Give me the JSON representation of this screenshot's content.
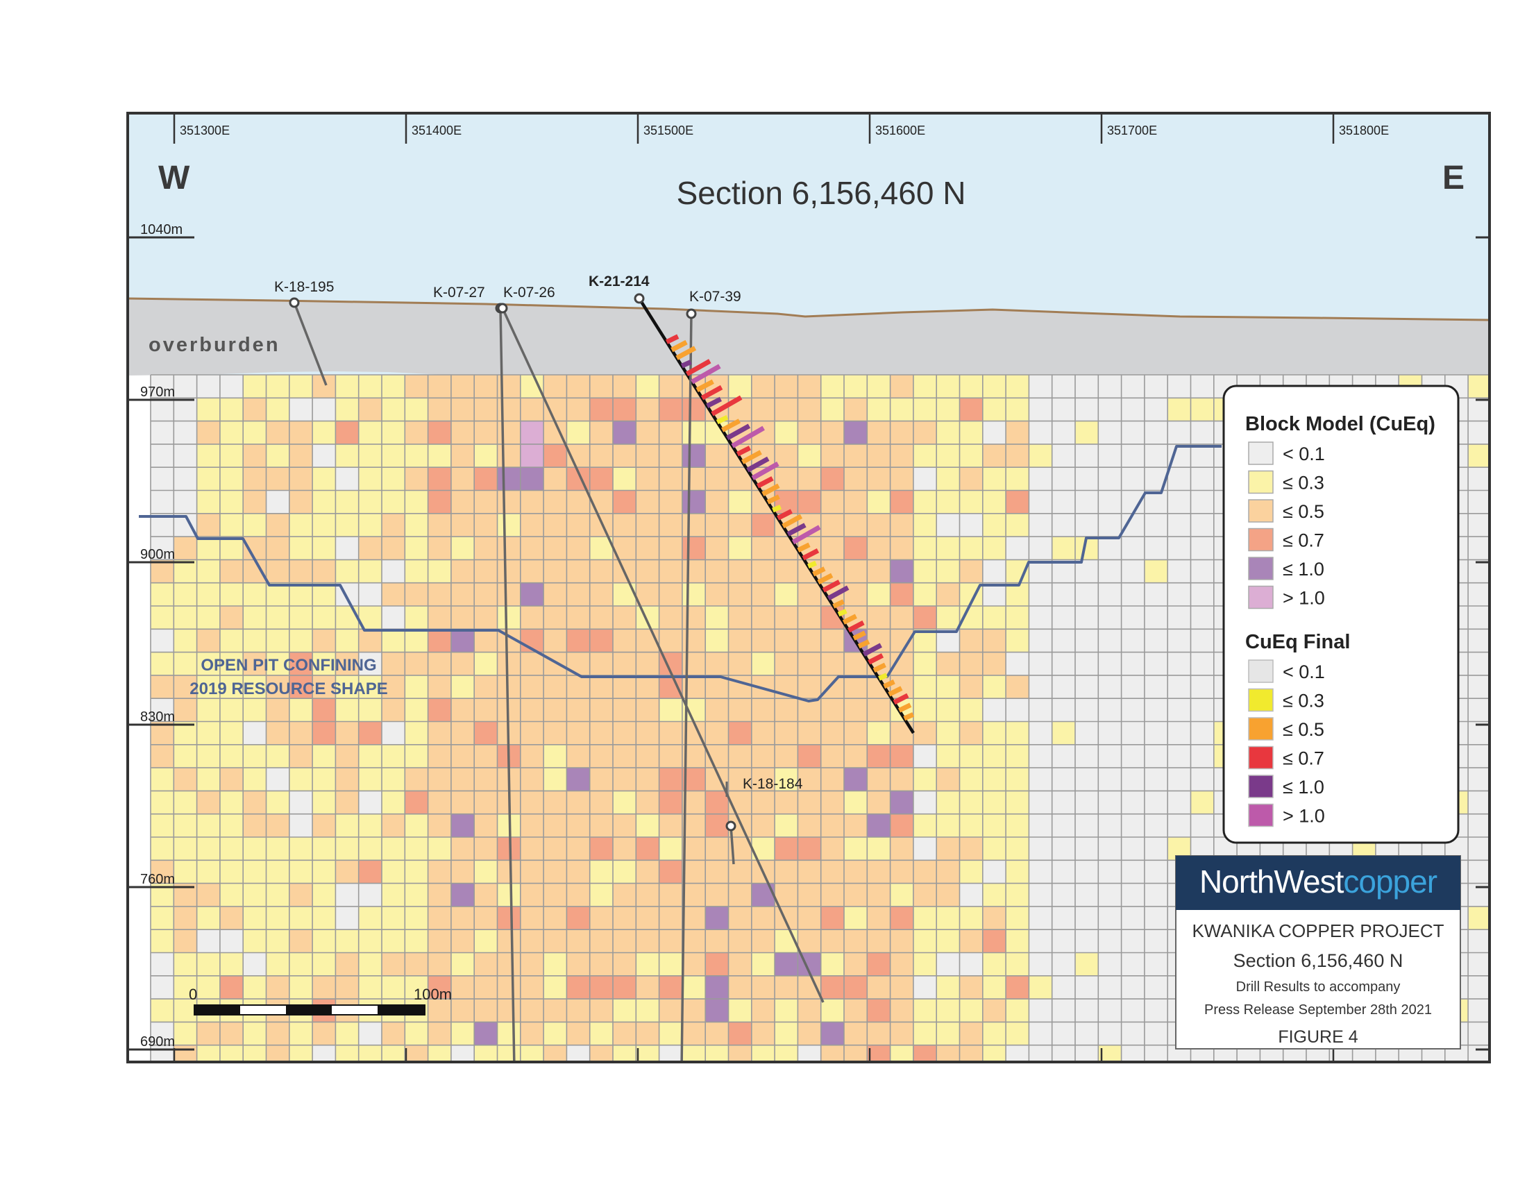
{
  "section": {
    "title": "Section 6,156,460 N",
    "west": "W",
    "east": "E",
    "overburden_label": "overburden",
    "pit_label_1": "OPEN PIT CONFINING",
    "pit_label_2": "2019  RESOURCE SHAPE",
    "eastings": [
      "351300E",
      "351400E",
      "351500E",
      "351600E",
      "351700E",
      "351800E"
    ],
    "elevations": [
      "1040m",
      "970m",
      "900m",
      "830m",
      "760m",
      "690m"
    ],
    "scale": {
      "start": "0",
      "end": "100m"
    }
  },
  "drillholes": [
    {
      "id": "K-18-195",
      "label": "K-18-195"
    },
    {
      "id": "K-07-27",
      "label": "K-07-27"
    },
    {
      "id": "K-07-26",
      "label": "K-07-26"
    },
    {
      "id": "K-21-214",
      "label": "K-21-214"
    },
    {
      "id": "K-07-39",
      "label": "K-07-39"
    },
    {
      "id": "K-18-184",
      "label": "K-18-184"
    }
  ],
  "legend": {
    "block_title": "Block Model (CuEq)",
    "block_items": [
      {
        "label": "< 0.1",
        "color": "#eeeeee"
      },
      {
        "label": "≤ 0.3",
        "color": "#fbf3a8"
      },
      {
        "label": "≤ 0.5",
        "color": "#fbd29e"
      },
      {
        "label": "≤ 0.7",
        "color": "#f4a386"
      },
      {
        "label": "≤ 1.0",
        "color": "#a985b8"
      },
      {
        "label": "> 1.0",
        "color": "#dcaed4"
      }
    ],
    "final_title": "CuEq Final",
    "final_items": [
      {
        "label": "< 0.1",
        "color": "#e6e6e6"
      },
      {
        "label": "≤ 0.3",
        "color": "#f1ea2e"
      },
      {
        "label": "≤ 0.5",
        "color": "#f8a230"
      },
      {
        "label": "≤ 0.7",
        "color": "#e8373e"
      },
      {
        "label": "≤ 1.0",
        "color": "#7a3a8a"
      },
      {
        "label": "> 1.0",
        "color": "#bd5aaa"
      }
    ]
  },
  "titlebox": {
    "logo_north": "NorthWest",
    "logo_copper": "copper",
    "project": "KWANIKA COPPER PROJECT",
    "section": "Section 6,156,460 N",
    "drill": "Drill Results to accompany",
    "press": "Press Release September 28th 2021",
    "figure": "FIGURE 4"
  },
  "colors": {
    "sky": "#dbedf6",
    "overburden": "#d2d3d5",
    "topo": "#a27d55",
    "pit": "#4f6594",
    "frame": "#333333",
    "logo_bg": "#1e3a5e",
    "logo_accent": "#3ba3dc"
  }
}
